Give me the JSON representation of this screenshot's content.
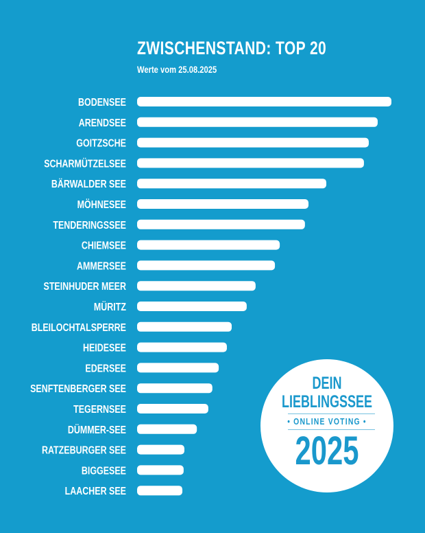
{
  "chart_data": {
    "type": "bar",
    "orientation": "horizontal",
    "title": "ZWISCHENSTAND: TOP 20",
    "subtitle": "Werte vom 25.08.2025",
    "xlabel": "",
    "ylabel": "",
    "value_unit": "relative to leader (%)",
    "xlim": [
      0,
      100
    ],
    "grid": false,
    "categories": [
      "BODENSEE",
      "ARENDSEE",
      "GOITZSCHE",
      "SCHARMÜTZELSEE",
      "BÄRWALDER SEE",
      "MÖHNESEE",
      "TENDERINGSSEE",
      "CHIEMSEE",
      "AMMERSEE",
      "STEINHUDER MEER",
      "MÜRITZ",
      "BLEILOCHTALSPERRE",
      "HEIDESEE",
      "EDERSEE",
      "SENFTENBERGER SEE",
      "TEGERNSEE",
      "DÜMMER-SEE",
      "RATZEBURGER SEE",
      "BIGGESEE",
      "LAACHER SEE"
    ],
    "values": [
      100,
      94.6,
      91.1,
      89.2,
      74.4,
      67.4,
      66.0,
      56.1,
      54.2,
      46.6,
      43.1,
      37.2,
      35.3,
      32.1,
      29.6,
      28.0,
      23.5,
      18.6,
      18.3,
      17.8
    ],
    "colors": {
      "background": "#149ccd",
      "bar": "#ffffff"
    }
  },
  "badge": {
    "line1": "DEIN",
    "line2": "LIEBLINGSSEE",
    "line3": "• ONLINE VOTING •",
    "year": "2025"
  }
}
